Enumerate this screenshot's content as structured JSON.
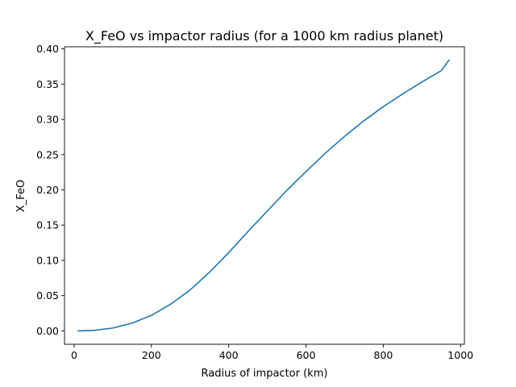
{
  "chart_data": {
    "type": "line",
    "title": "X_FeO vs impactor radius (for a 1000 km radius planet)",
    "xlabel": "Radius of impactor (km)",
    "ylabel": "X_FeO",
    "xlim": [
      -25,
      1010
    ],
    "ylim": [
      -0.019,
      0.403
    ],
    "xticks": [
      0,
      200,
      400,
      600,
      800,
      1000
    ],
    "yticks": [
      0.0,
      0.05,
      0.1,
      0.15,
      0.2,
      0.25,
      0.3,
      0.35,
      0.4
    ],
    "xtick_labels": [
      "0",
      "200",
      "400",
      "600",
      "800",
      "1000"
    ],
    "ytick_labels": [
      "0.00",
      "0.05",
      "0.10",
      "0.15",
      "0.20",
      "0.25",
      "0.30",
      "0.35",
      "0.40"
    ],
    "grid": false,
    "series": [
      {
        "color": "#1f77b4",
        "x": [
          10,
          50,
          100,
          150,
          200,
          250,
          300,
          350,
          400,
          450,
          500,
          550,
          600,
          650,
          700,
          750,
          800,
          850,
          900,
          950,
          970
        ],
        "y": [
          0.0,
          0.0006,
          0.004,
          0.011,
          0.022,
          0.038,
          0.058,
          0.083,
          0.111,
          0.141,
          0.17,
          0.199,
          0.226,
          0.252,
          0.276,
          0.298,
          0.318,
          0.336,
          0.353,
          0.369,
          0.384
        ]
      }
    ]
  }
}
